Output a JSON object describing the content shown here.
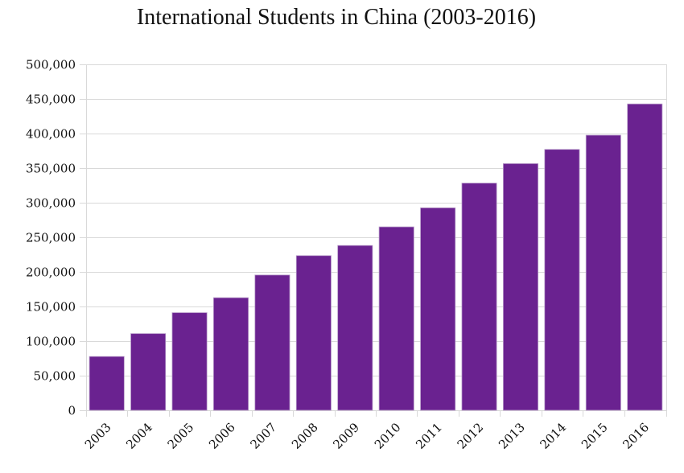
{
  "chart_data": {
    "type": "bar",
    "title": "International Students in China (2003-2016)",
    "xlabel": "",
    "ylabel": "",
    "categories": [
      "2003",
      "2004",
      "2005",
      "2006",
      "2007",
      "2008",
      "2009",
      "2010",
      "2011",
      "2012",
      "2013",
      "2014",
      "2015",
      "2016"
    ],
    "values": [
      77715,
      110844,
      141087,
      162695,
      195503,
      223499,
      238184,
      265090,
      292611,
      328330,
      356499,
      377054,
      397635,
      442773
    ],
    "ylim": [
      0,
      500000
    ],
    "yticks": [
      0,
      50000,
      100000,
      150000,
      200000,
      250000,
      300000,
      350000,
      400000,
      450000,
      500000
    ],
    "ytick_labels": [
      "0",
      "50,000",
      "100,000",
      "150,000",
      "200,000",
      "250,000",
      "300,000",
      "350,000",
      "400,000",
      "450,000",
      "500,000"
    ],
    "grid": true,
    "legend": "none",
    "bar_color": "#6a2290",
    "bar_edge_color": "#b79bc9",
    "grid_color": "#d9d9d9"
  }
}
